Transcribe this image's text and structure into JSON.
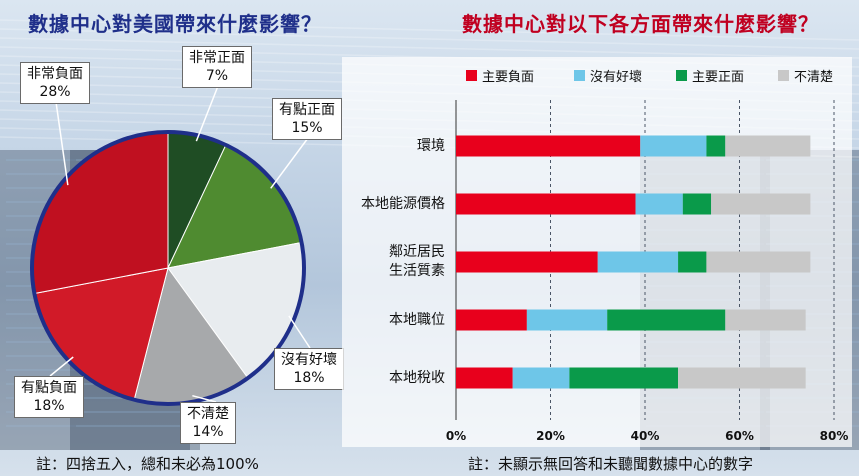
{
  "left_title": "數據中心對美國帶來什麼影響？",
  "right_title": "數據中心對以下各方面帶來什麼影響？",
  "left_note": "註：四捨五入，總和未必為100%",
  "right_note": "註：未顯示無回答和未聽聞數據中心的數字",
  "colors": {
    "very_positive": "#1f4d24",
    "positive": "#4f8b30",
    "negative_strong": "#c01020",
    "negative": "#d11a28",
    "no_effect": "#e8ecef",
    "unsure": "#a7a9ab",
    "major_negative": "#e8001c",
    "no_good_bad": "#6ec6e8",
    "major_positive": "#0a9a4a",
    "not_sure": "#c8c8c8"
  },
  "chart_data": [
    {
      "type": "pie",
      "title": "數據中心對美國帶來什麼影響？",
      "slices": [
        {
          "label": "非常正面",
          "value": 7,
          "display": "7%",
          "color": "#1f4d24"
        },
        {
          "label": "有點正面",
          "value": 15,
          "display": "15%",
          "color": "#4f8b30"
        },
        {
          "label": "沒有好壞",
          "value": 18,
          "display": "18%",
          "color": "#e8ecef"
        },
        {
          "label": "不清楚",
          "value": 14,
          "display": "14%",
          "color": "#a7a9ab"
        },
        {
          "label": "有點負面",
          "value": 18,
          "display": "18%",
          "color": "#d11a28"
        },
        {
          "label": "非常負面",
          "value": 28,
          "display": "28%",
          "color": "#c01020"
        }
      ]
    },
    {
      "type": "bar",
      "orientation": "horizontal",
      "stacked": true,
      "title": "數據中心對以下各方面帶來什麼影響？",
      "categories": [
        "環境",
        "本地能源價格",
        "鄰近居民生活質素",
        "本地職位",
        "本地稅收"
      ],
      "category_lines": [
        [
          "環境"
        ],
        [
          "本地能源價格"
        ],
        [
          "鄰近居民",
          "生活質素"
        ],
        [
          "本地職位"
        ],
        [
          "本地稅收"
        ]
      ],
      "series": [
        {
          "name": "主要負面",
          "color": "#e8001c",
          "values": [
            39,
            38,
            30,
            15,
            12
          ]
        },
        {
          "name": "沒有好壞",
          "color": "#6ec6e8",
          "values": [
            14,
            10,
            17,
            17,
            12
          ]
        },
        {
          "name": "主要正面",
          "color": "#0a9a4a",
          "values": [
            4,
            6,
            6,
            25,
            23
          ]
        },
        {
          "name": "不清楚",
          "color": "#c8c8c8",
          "values": [
            18,
            21,
            22,
            17,
            27
          ]
        }
      ],
      "xlim": [
        0,
        80
      ],
      "xticks": [
        "0%",
        "20%",
        "40%",
        "60%",
        "80%"
      ],
      "legend_position": "top"
    }
  ]
}
